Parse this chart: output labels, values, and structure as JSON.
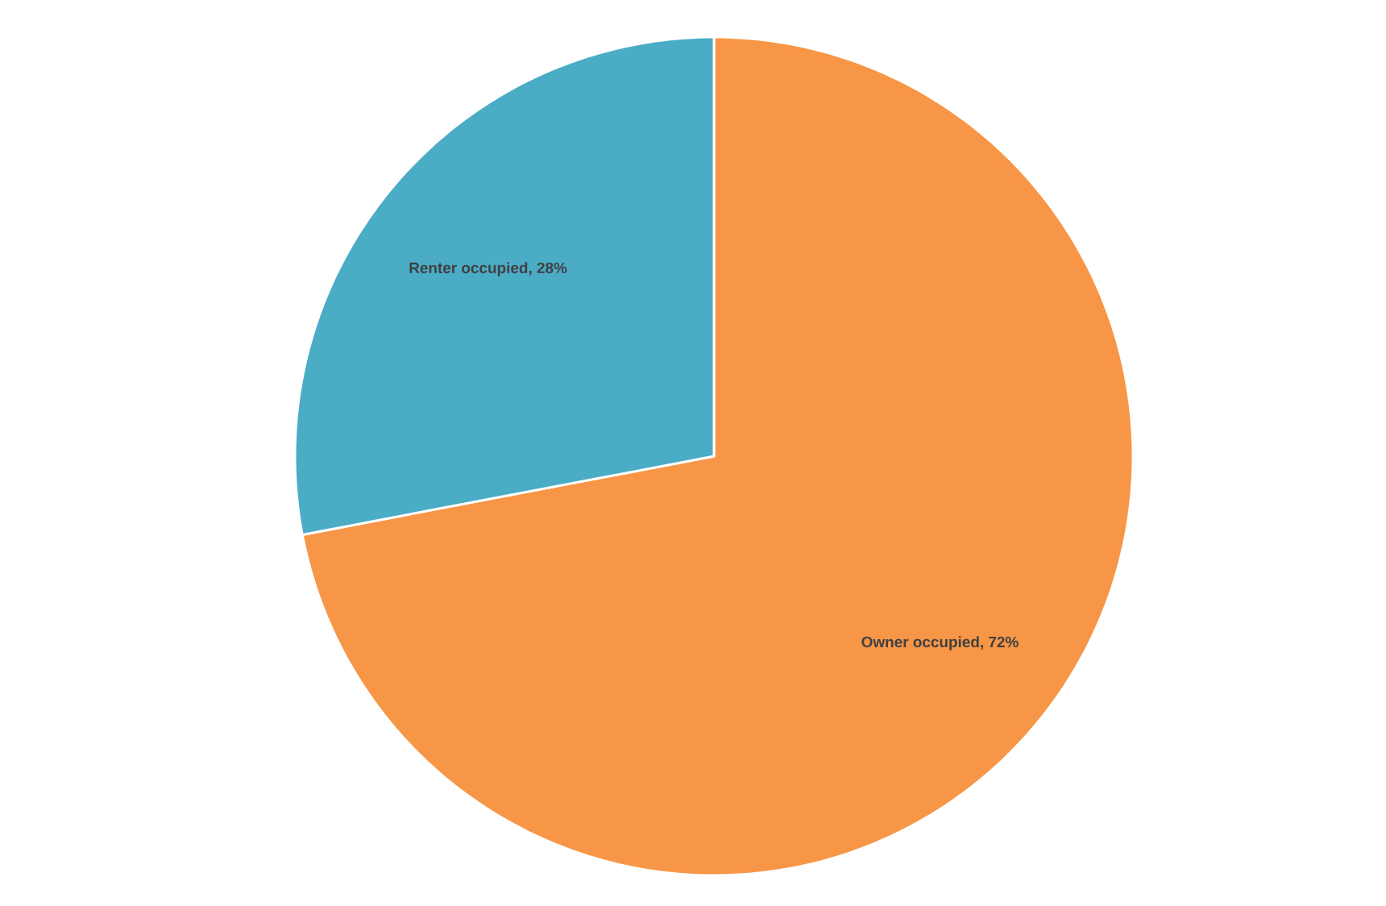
{
  "chart_data": {
    "type": "pie",
    "categories": [
      "Owner occupied",
      "Renter occupied"
    ],
    "values": [
      72,
      28
    ],
    "colors": [
      "#f79646",
      "#4bacc6"
    ],
    "value_labels": [
      ", 72%",
      ", 28%"
    ]
  }
}
